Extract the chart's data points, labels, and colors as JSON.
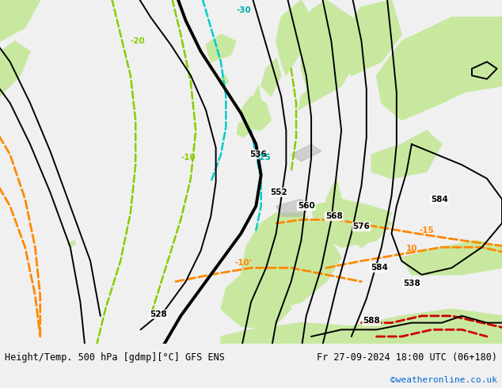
{
  "title_left": "Height/Temp. 500 hPa [gdmp][°C] GFS ENS",
  "title_right": "Fr 27-09-2024 18:00 UTC (06+180)",
  "watermark": "©weatheronline.co.uk",
  "ocean_color": "#d8d8d8",
  "land_color": "#c8e8a0",
  "terrain_color": "#b0b0b0",
  "bottom_bar_color": "#f0f0f0",
  "fig_width": 6.34,
  "fig_height": 4.9,
  "dpi": 100,
  "bottom_text_color": "#000000",
  "watermark_color": "#0066cc"
}
